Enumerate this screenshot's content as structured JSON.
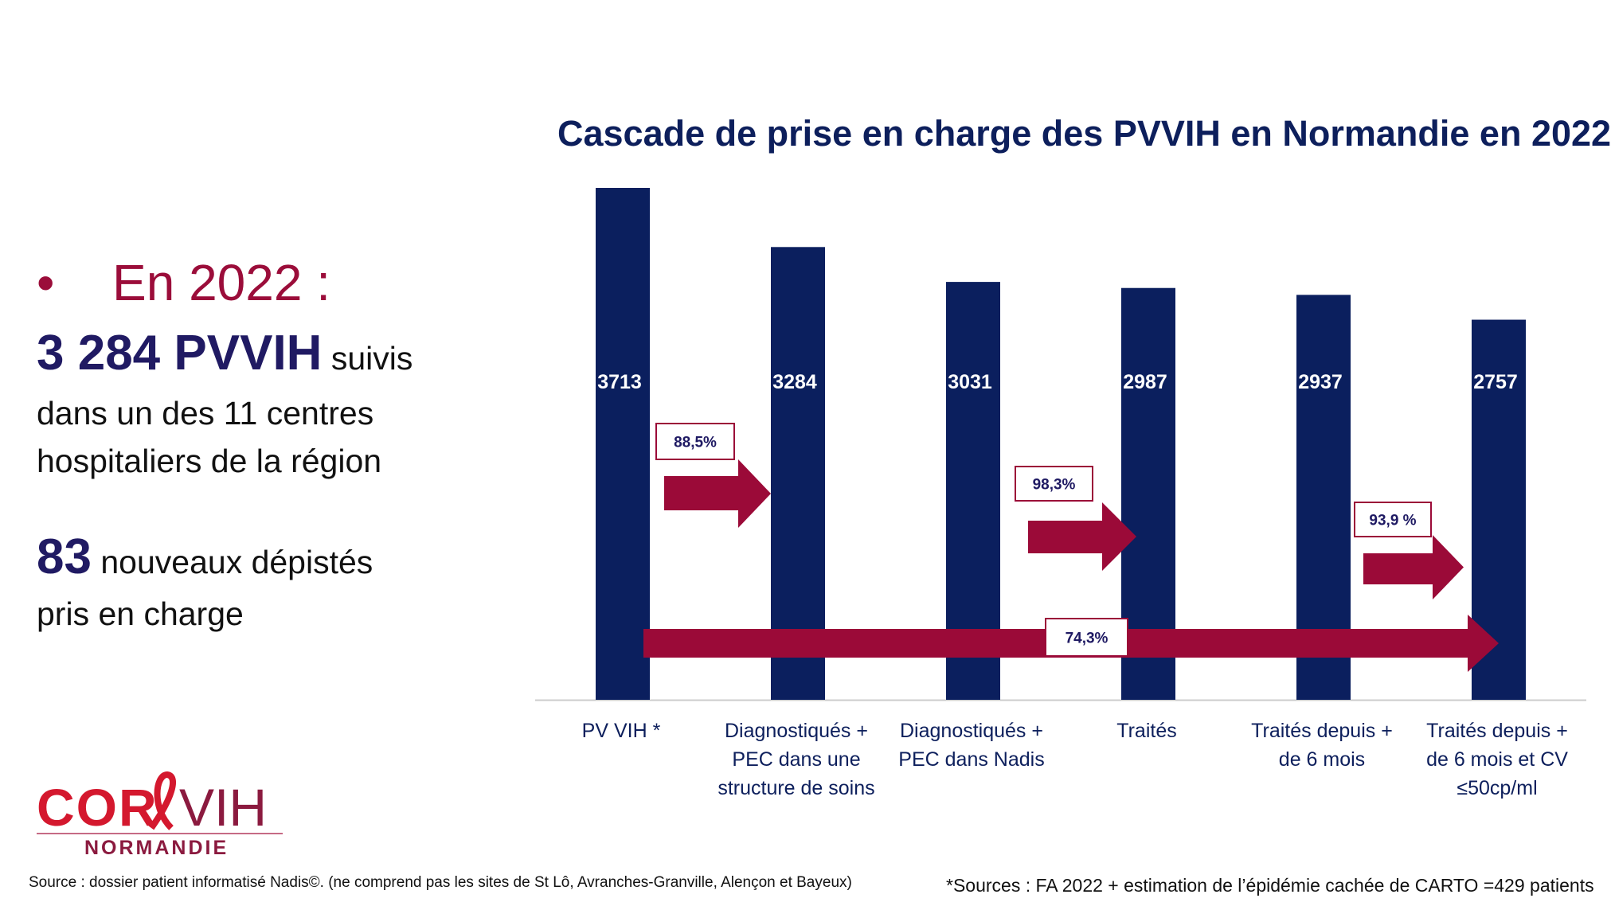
{
  "left_panel": {
    "bullet": "•",
    "heading": "En 2022 :",
    "pvvih_count": "3 284 PVVIH",
    "pvvih_suffix": "suivis",
    "line2": "dans un des 11 centres",
    "line3": "hospitaliers de la région",
    "new_count": "83",
    "new_suffix": "nouveaux dépistés",
    "new_line2": "pris en charge"
  },
  "logo": {
    "text": "CORЕVIH",
    "subtitle": "NORMANDIE"
  },
  "footer": {
    "source_left": "Source : dossier patient informatisé Nadis©. (ne comprend pas les sites de St Lô, Avranches-Granville, Alençon et Bayeux)",
    "source_right": "*Sources : FA 2022 + estimation de l’épidémie cachée de CARTO =429 patients"
  },
  "colors": {
    "bar": "#0b1f5e",
    "arrow": "#9b0a38",
    "heading": "#9b0d3a",
    "title": "#0d1f5c"
  },
  "chart_data": {
    "type": "bar",
    "title": "Cascade de prise en charge des PVVIH en Normandie en 2022",
    "categories": [
      [
        "PV VIH *"
      ],
      [
        "Diagnostiqués +",
        "PEC dans une",
        "structure de soins"
      ],
      [
        "Diagnostiqués +",
        "PEC dans Nadis"
      ],
      [
        "Traités"
      ],
      [
        "Traités depuis +",
        "de 6 mois"
      ],
      [
        "Traités depuis +",
        "de 6 mois et CV",
        "≤50cp/ml"
      ]
    ],
    "values": [
      3713,
      3284,
      3031,
      2987,
      2937,
      2757
    ],
    "data_labels": [
      "3713",
      "3284",
      "3031",
      "2987",
      "2937",
      "2757"
    ],
    "ylim": [
      0,
      3713
    ],
    "grid": false,
    "annotations": [
      {
        "label": "88,5%",
        "from": 0,
        "to": 1
      },
      {
        "label": "98,3%",
        "from": 2,
        "to": 3
      },
      {
        "label": "93,9 %",
        "from": 4,
        "to": 5
      },
      {
        "label": "74,3%",
        "from": 0,
        "to": 5
      }
    ]
  }
}
